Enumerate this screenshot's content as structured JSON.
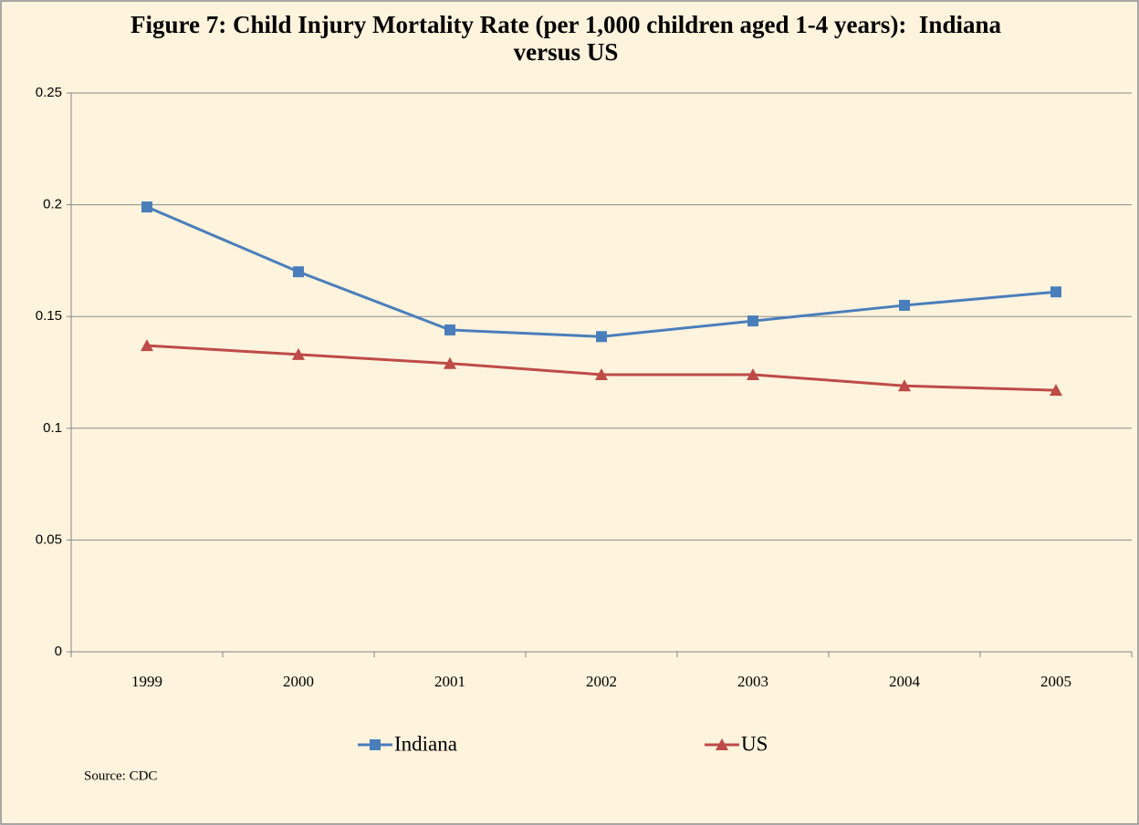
{
  "chart_data": {
    "type": "line",
    "title": "Figure 7: Child Injury Mortality Rate (per 1,000 children aged 1-4 years):  Indiana versus US",
    "categories": [
      "1999",
      "2000",
      "2001",
      "2002",
      "2003",
      "2004",
      "2005"
    ],
    "series": [
      {
        "name": "Indiana",
        "color": "#4a7ebb",
        "marker": "square",
        "values": [
          0.199,
          0.17,
          0.144,
          0.141,
          0.148,
          0.155,
          0.161
        ]
      },
      {
        "name": "US",
        "color": "#be4b48",
        "marker": "triangle",
        "values": [
          0.137,
          0.133,
          0.129,
          0.124,
          0.124,
          0.119,
          0.117
        ]
      }
    ],
    "ylim": [
      0,
      0.25
    ],
    "yticks": [
      0,
      0.05,
      0.1,
      0.15,
      0.2,
      0.25
    ],
    "grid": true,
    "legend": "bottom",
    "annotations": [
      "Source:  CDC"
    ]
  }
}
